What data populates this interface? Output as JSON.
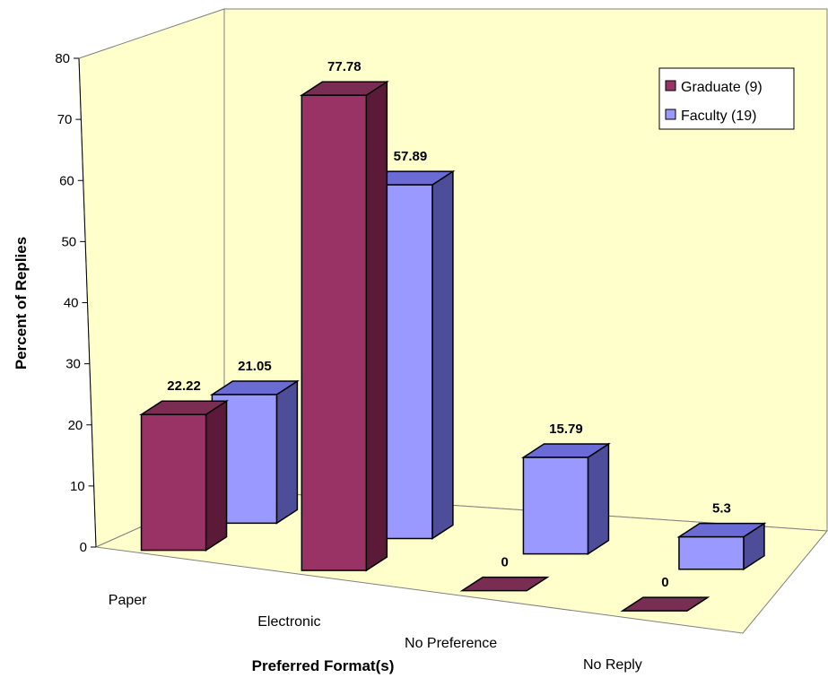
{
  "chart_data": {
    "type": "bar",
    "view": "3d-clustered",
    "categories": [
      "Paper",
      "Electronic",
      "No Preference",
      "No Reply"
    ],
    "series": [
      {
        "name": "Graduate (9)",
        "values": [
          22.22,
          77.78,
          0,
          0
        ]
      },
      {
        "name": "Faculty (19)",
        "values": [
          21.05,
          57.89,
          15.79,
          5.3
        ]
      }
    ],
    "data_labels": [
      [
        "22.22",
        "77.78",
        "0",
        "0"
      ],
      [
        "21.05",
        "57.89",
        "15.79",
        "5.3"
      ]
    ],
    "title": "",
    "xlabel": "Preferred Format(s)",
    "ylabel": "Percent of Replies",
    "ylim": [
      0,
      80
    ],
    "yticks": [
      "0",
      "10",
      "20",
      "30",
      "40",
      "50",
      "60",
      "70",
      "80"
    ],
    "grid": false,
    "legend_position": "top-right",
    "colors": {
      "graduate": "#993366",
      "faculty": "#9999ff",
      "walls": "#ffffcc",
      "outline": "#000000"
    }
  }
}
